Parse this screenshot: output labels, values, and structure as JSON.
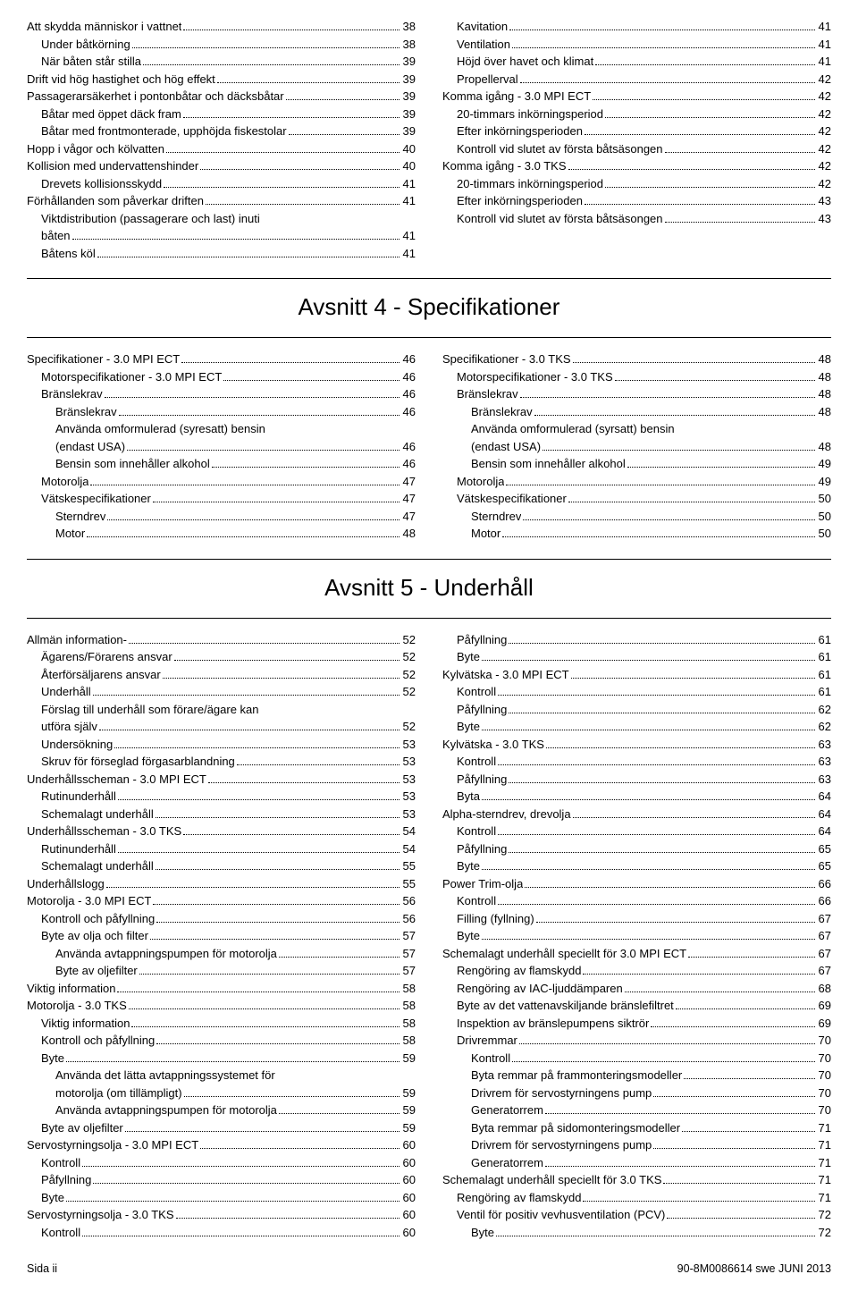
{
  "page": {
    "footer_left": "Sida  ii",
    "footer_right": "90-8M0086614 swe JUNI 2013"
  },
  "sections": [
    {
      "title": null,
      "left": [
        {
          "t": "Att skydda människor i vattnet",
          "p": "38",
          "i": 0
        },
        {
          "t": "Under båtkörning",
          "p": "38",
          "i": 1
        },
        {
          "t": "När båten står stilla",
          "p": "39",
          "i": 1
        },
        {
          "t": "Drift vid hög hastighet och hög effekt",
          "p": "39",
          "i": 0
        },
        {
          "t": "Passagerarsäkerhet i pontonbåtar och däcksbåtar",
          "p": "39",
          "i": 0
        },
        {
          "t": "Båtar med öppet däck fram",
          "p": "39",
          "i": 1
        },
        {
          "t": "Båtar med frontmonterade, upphöjda fiskestolar",
          "p": "39",
          "i": 1
        },
        {
          "t": "Hopp i vågor och kölvatten",
          "p": "40",
          "i": 0
        },
        {
          "t": "Kollision med undervattenshinder",
          "p": "40",
          "i": 0
        },
        {
          "t": "Drevets kollisionsskydd",
          "p": "41",
          "i": 1
        },
        {
          "t": "Förhållanden som påverkar driften",
          "p": "41",
          "i": 0
        },
        {
          "t": "Viktdistribution (passagerare och last) inuti båten",
          "p": "41",
          "i": 1
        },
        {
          "t": "Båtens köl",
          "p": "41",
          "i": 1
        }
      ],
      "right": [
        {
          "t": "Kavitation",
          "p": "41",
          "i": 1
        },
        {
          "t": "Ventilation",
          "p": "41",
          "i": 1
        },
        {
          "t": "Höjd över havet och klimat",
          "p": "41",
          "i": 1
        },
        {
          "t": "Propellerval",
          "p": "42",
          "i": 1
        },
        {
          "t": "Komma igång - 3.0 MPI ECT",
          "p": "42",
          "i": 0
        },
        {
          "t": "20-timmars inkörningsperiod",
          "p": "42",
          "i": 1
        },
        {
          "t": "Efter inkörningsperioden",
          "p": "42",
          "i": 1
        },
        {
          "t": "Kontroll vid slutet av första båtsäsongen",
          "p": "42",
          "i": 1
        },
        {
          "t": "Komma igång - 3.0 TKS",
          "p": "42",
          "i": 0
        },
        {
          "t": "20-timmars inkörningsperiod",
          "p": "42",
          "i": 1
        },
        {
          "t": "Efter inkörningsperioden",
          "p": "43",
          "i": 1
        },
        {
          "t": "Kontroll vid slutet av första båtsäsongen",
          "p": "43",
          "i": 1
        }
      ]
    },
    {
      "title": "Avsnitt 4 - Specifikationer",
      "left": [
        {
          "t": "Specifikationer - 3.0 MPI ECT",
          "p": "46",
          "i": 0
        },
        {
          "t": "Motorspecifikationer - 3.0 MPI ECT",
          "p": "46",
          "i": 1
        },
        {
          "t": "Bränslekrav",
          "p": "46",
          "i": 1
        },
        {
          "t": "Bränslekrav",
          "p": "46",
          "i": 2
        },
        {
          "t": "Använda omformulerad (syresatt) bensin (endast USA)",
          "p": "46",
          "i": 2
        },
        {
          "t": "Bensin som innehåller alkohol",
          "p": "46",
          "i": 2
        },
        {
          "t": "Motorolja",
          "p": "47",
          "i": 1
        },
        {
          "t": "Vätskespecifikationer",
          "p": "47",
          "i": 1
        },
        {
          "t": "Sterndrev",
          "p": "47",
          "i": 2
        },
        {
          "t": "Motor",
          "p": "48",
          "i": 2
        }
      ],
      "right": [
        {
          "t": "Specifikationer - 3.0 TKS",
          "p": "48",
          "i": 0
        },
        {
          "t": "Motorspecifikationer - 3.0 TKS",
          "p": "48",
          "i": 1
        },
        {
          "t": "Bränslekrav",
          "p": "48",
          "i": 1
        },
        {
          "t": "Bränslekrav",
          "p": "48",
          "i": 2
        },
        {
          "t": "Använda omformulerad (syrsatt) bensin (endast USA)",
          "p": "48",
          "i": 2
        },
        {
          "t": "Bensin som innehåller alkohol",
          "p": "49",
          "i": 2
        },
        {
          "t": "Motorolja",
          "p": "49",
          "i": 1
        },
        {
          "t": "Vätskespecifikationer",
          "p": "50",
          "i": 1
        },
        {
          "t": "Sterndrev",
          "p": "50",
          "i": 2
        },
        {
          "t": "Motor",
          "p": "50",
          "i": 2
        }
      ]
    },
    {
      "title": "Avsnitt 5 - Underhåll",
      "left": [
        {
          "t": "Allmän information-",
          "p": "52",
          "i": 0
        },
        {
          "t": "Ägarens/Förarens ansvar",
          "p": "52",
          "i": 1
        },
        {
          "t": "Återförsäljarens ansvar",
          "p": "52",
          "i": 1
        },
        {
          "t": "Underhåll",
          "p": "52",
          "i": 1
        },
        {
          "t": "Förslag till underhåll som förare/ägare kan utföra själv",
          "p": "52",
          "i": 1
        },
        {
          "t": "Undersökning",
          "p": "53",
          "i": 1
        },
        {
          "t": "Skruv för förseglad förgasarblandning",
          "p": "53",
          "i": 1
        },
        {
          "t": "Underhållsscheman - 3.0 MPI ECT",
          "p": "53",
          "i": 0
        },
        {
          "t": "Rutinunderhåll",
          "p": "53",
          "i": 1
        },
        {
          "t": "Schemalagt underhåll",
          "p": "53",
          "i": 1
        },
        {
          "t": "Underhållsscheman - 3.0 TKS",
          "p": "54",
          "i": 0
        },
        {
          "t": "Rutinunderhåll",
          "p": "54",
          "i": 1
        },
        {
          "t": "Schemalagt underhåll",
          "p": "55",
          "i": 1
        },
        {
          "t": "Underhållslogg",
          "p": "55",
          "i": 0
        },
        {
          "t": "Motorolja - 3.0 MPI ECT",
          "p": "56",
          "i": 0
        },
        {
          "t": "Kontroll och påfyllning",
          "p": "56",
          "i": 1
        },
        {
          "t": "Byte av olja och filter",
          "p": "57",
          "i": 1
        },
        {
          "t": "Använda avtappningspumpen för motorolja",
          "p": "57",
          "i": 2
        },
        {
          "t": "Byte av oljefilter",
          "p": "57",
          "i": 2
        },
        {
          "t": "Viktig information",
          "p": "58",
          "i": 0
        },
        {
          "t": "Motorolja - 3.0 TKS",
          "p": "58",
          "i": 0
        },
        {
          "t": "Viktig information",
          "p": "58",
          "i": 1
        },
        {
          "t": "Kontroll och påfyllning",
          "p": "58",
          "i": 1
        },
        {
          "t": "Byte",
          "p": "59",
          "i": 1
        },
        {
          "t": "Använda det lätta avtappningssystemet för motorolja (om tillämpligt)",
          "p": "59",
          "i": 2
        },
        {
          "t": "Använda avtappningspumpen för motorolja",
          "p": "59",
          "i": 2
        },
        {
          "t": "Byte av oljefilter",
          "p": "59",
          "i": 1
        },
        {
          "t": "Servostyrningsolja - 3.0 MPI ECT",
          "p": "60",
          "i": 0
        },
        {
          "t": "Kontroll",
          "p": "60",
          "i": 1
        },
        {
          "t": "Påfyllning",
          "p": "60",
          "i": 1
        },
        {
          "t": "Byte",
          "p": "60",
          "i": 1
        },
        {
          "t": "Servostyrningsolja - 3.0 TKS",
          "p": "60",
          "i": 0
        },
        {
          "t": "Kontroll",
          "p": "60",
          "i": 1
        }
      ],
      "right": [
        {
          "t": "Påfyllning",
          "p": "61",
          "i": 1
        },
        {
          "t": "Byte",
          "p": "61",
          "i": 1
        },
        {
          "t": "Kylvätska - 3.0 MPI ECT",
          "p": "61",
          "i": 0
        },
        {
          "t": "Kontroll",
          "p": "61",
          "i": 1
        },
        {
          "t": "Påfyllning",
          "p": "62",
          "i": 1
        },
        {
          "t": "Byte",
          "p": "62",
          "i": 1
        },
        {
          "t": "Kylvätska - 3.0 TKS",
          "p": "63",
          "i": 0
        },
        {
          "t": "Kontroll",
          "p": "63",
          "i": 1
        },
        {
          "t": "Påfyllning",
          "p": "63",
          "i": 1
        },
        {
          "t": "Byta",
          "p": "64",
          "i": 1
        },
        {
          "t": "Alpha-sterndrev, drevolja",
          "p": "64",
          "i": 0
        },
        {
          "t": "Kontroll",
          "p": "64",
          "i": 1
        },
        {
          "t": "Påfyllning",
          "p": "65",
          "i": 1
        },
        {
          "t": "Byte",
          "p": "65",
          "i": 1
        },
        {
          "t": "Power Trim-olja",
          "p": "66",
          "i": 0
        },
        {
          "t": "Kontroll",
          "p": "66",
          "i": 1
        },
        {
          "t": "Filling (fyllning)",
          "p": "67",
          "i": 1
        },
        {
          "t": "Byte",
          "p": "67",
          "i": 1
        },
        {
          "t": "Schemalagt underhåll speciellt för 3.0 MPI ECT",
          "p": "67",
          "i": 0
        },
        {
          "t": "Rengöring av flamskydd",
          "p": "67",
          "i": 1
        },
        {
          "t": "Rengöring av IAC-ljuddämparen",
          "p": "68",
          "i": 1
        },
        {
          "t": "Byte av det vattenavskiljande bränslefiltret",
          "p": "69",
          "i": 1
        },
        {
          "t": "Inspektion av bränslepumpens siktrör",
          "p": "69",
          "i": 1
        },
        {
          "t": "Drivremmar",
          "p": "70",
          "i": 1
        },
        {
          "t": "Kontroll",
          "p": "70",
          "i": 2
        },
        {
          "t": "Byta remmar på frammonteringsmodeller",
          "p": "70",
          "i": 2
        },
        {
          "t": "Drivrem för servostyrningens pump",
          "p": "70",
          "i": 2
        },
        {
          "t": "Generatorrem",
          "p": "70",
          "i": 2
        },
        {
          "t": "Byta remmar på sidomonteringsmodeller",
          "p": "71",
          "i": 2
        },
        {
          "t": "Drivrem för servostyrningens pump",
          "p": "71",
          "i": 2
        },
        {
          "t": "Generatorrem",
          "p": "71",
          "i": 2
        },
        {
          "t": "Schemalagt underhåll speciellt för 3.0 TKS",
          "p": "71",
          "i": 0
        },
        {
          "t": "Rengöring av flamskydd",
          "p": "71",
          "i": 1
        },
        {
          "t": "Ventil för positiv vevhusventilation (PCV)",
          "p": "72",
          "i": 1
        },
        {
          "t": "Byte",
          "p": "72",
          "i": 2
        }
      ]
    }
  ]
}
